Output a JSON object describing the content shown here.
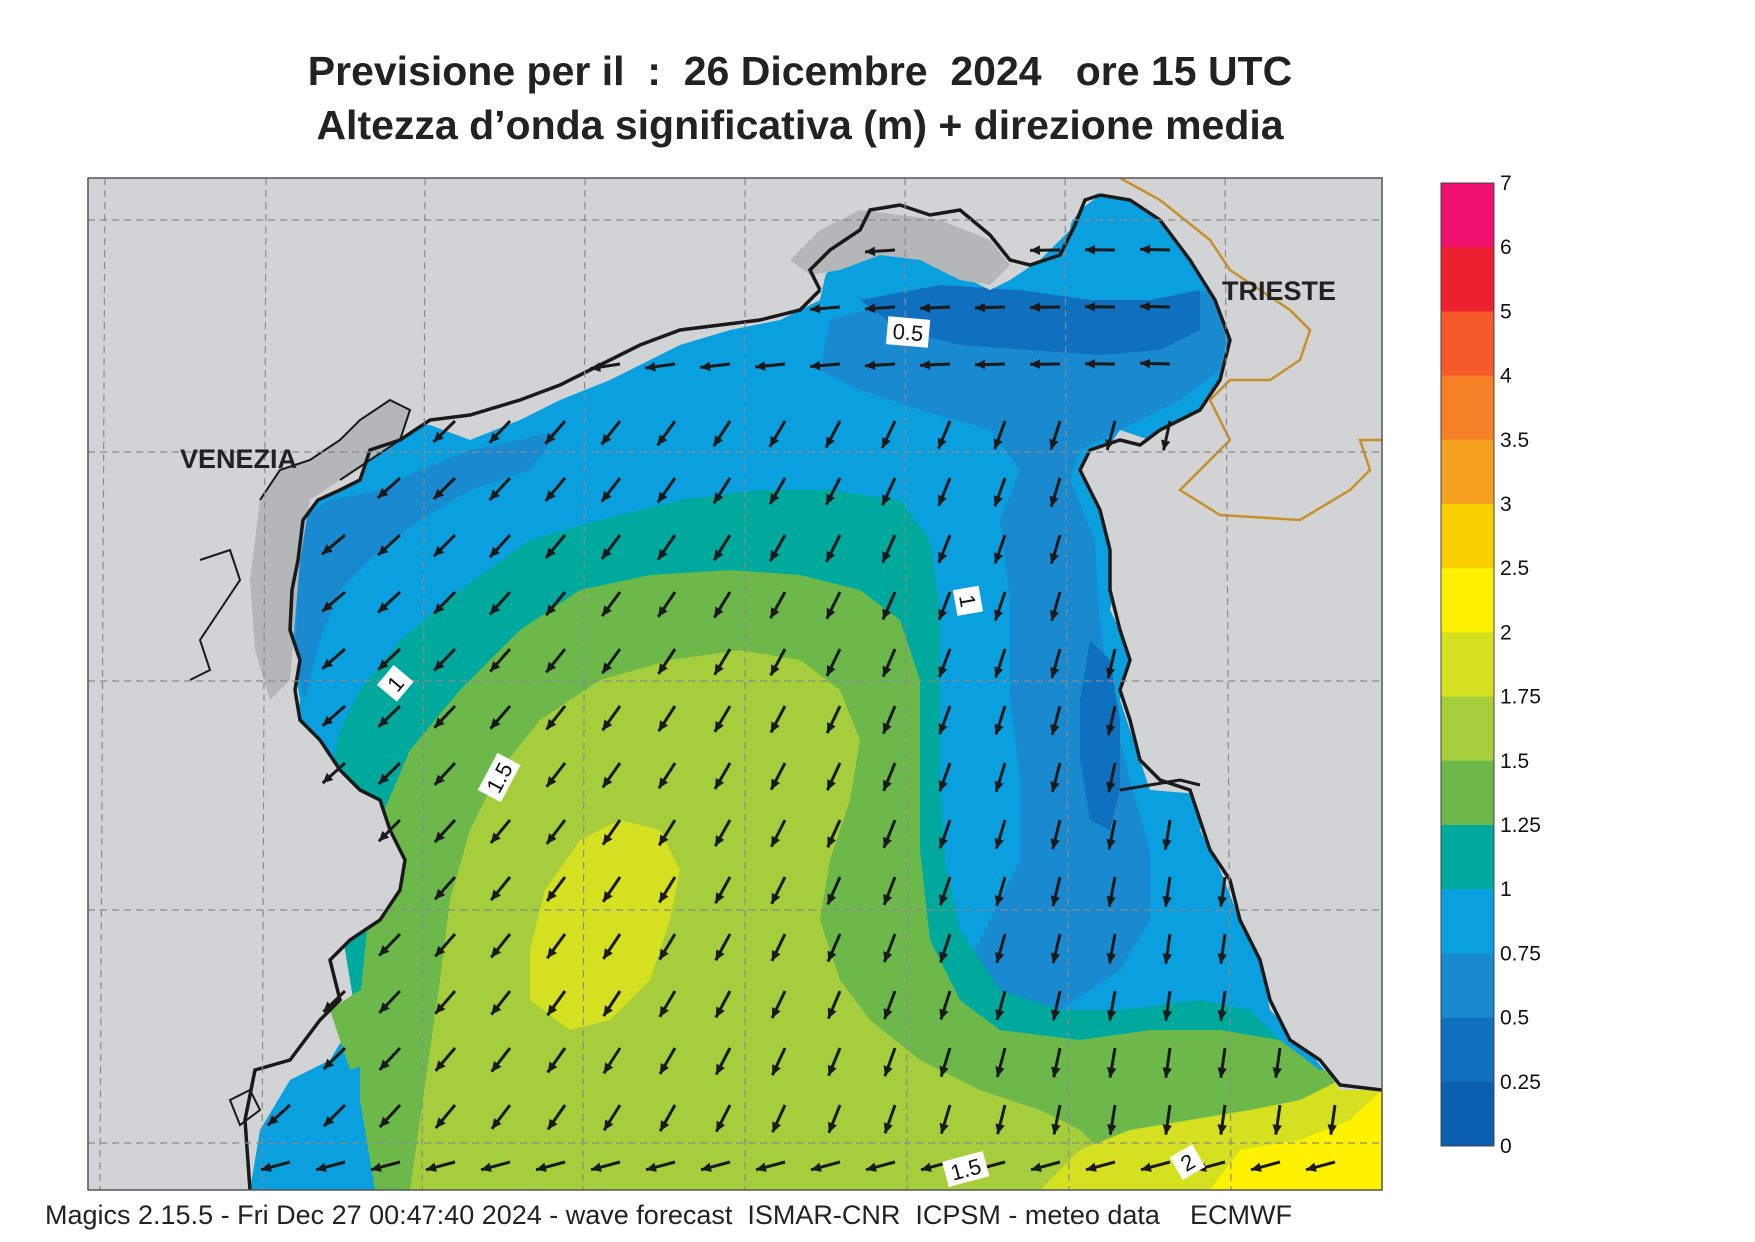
{
  "header": {
    "line1": "Previsione per il  :  26 Dicembre  2024   ore 15 UTC",
    "line2": "Altezza d’onda significativa (m) + direzione media"
  },
  "labels": {
    "venezia": "VENEZIA",
    "trieste": "TRIESTE"
  },
  "contour_labels": [
    "0.5",
    "1",
    "1",
    "1.5",
    "1.5",
    "2"
  ],
  "legend": {
    "levels": [
      "7",
      "6",
      "5",
      "4",
      "3.5",
      "3",
      "2.5",
      "2",
      "1.75",
      "1.5",
      "1.25",
      "1",
      "0.75",
      "0.5",
      "0.25",
      "0"
    ],
    "colors": [
      "#f01070",
      "#ee2030",
      "#f55a2a",
      "#f58025",
      "#f5a020",
      "#fbd000",
      "#fff200",
      "#d5e021",
      "#a6cd3c",
      "#6db84a",
      "#00a99d",
      "#0aa0e0",
      "#1a8ad0",
      "#1070c0",
      "#0a5fb0"
    ]
  },
  "colors": {
    "land": "#d2d3d5",
    "coast": "#1a1a1a",
    "border": "#c8902a",
    "arrow": "#1a1a1a"
  },
  "footer": "Magics 2.15.5 - Fri Dec 27 00:47:40 2024 - wave forecast  ISMAR-CNR  ICPSM - meteo data    ECMWF"
}
